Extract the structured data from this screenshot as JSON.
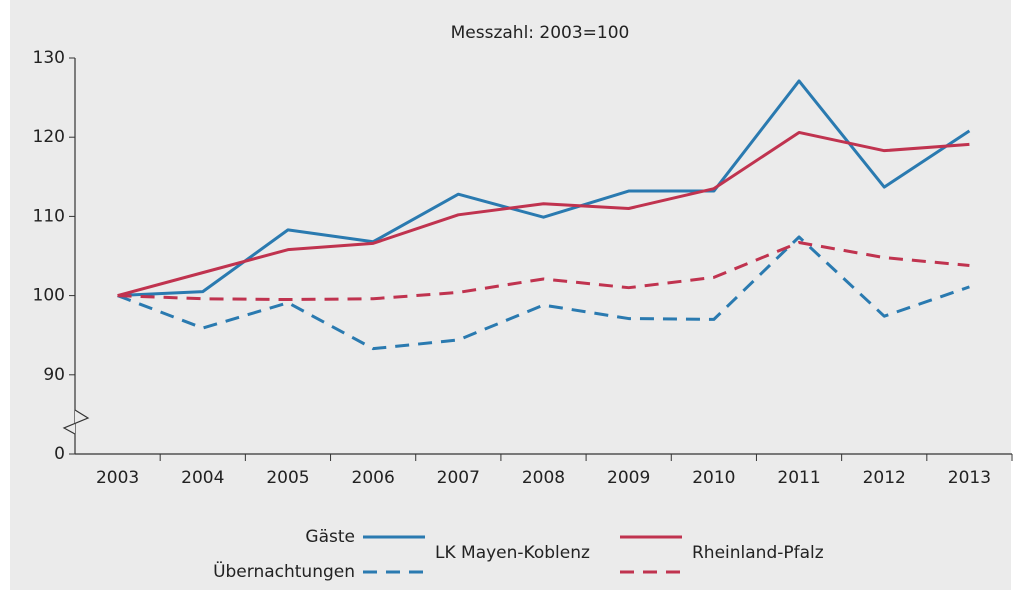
{
  "chart_data": {
    "type": "line",
    "title": "Messzahl: 2003=100",
    "categories": [
      "2003",
      "2004",
      "2005",
      "2006",
      "2007",
      "2008",
      "2009",
      "2010",
      "2011",
      "2012",
      "2013"
    ],
    "ylim": [
      0,
      130
    ],
    "yticks": [
      0,
      90,
      100,
      110,
      120,
      130
    ],
    "axis_break": true,
    "legend": {
      "rows": [
        "Gäste",
        "Übernachtungen"
      ],
      "columns": [
        "LK Mayen-Koblenz",
        "Rheinland-Pfalz"
      ]
    },
    "series": [
      {
        "color": "#2a7ab0",
        "dashed": false,
        "values": [
          100,
          100.5,
          108.3,
          106.8,
          112.8,
          109.9,
          113.2,
          113.2,
          127.1,
          113.7,
          120.8
        ]
      },
      {
        "color": "#2a7ab0",
        "dashed": true,
        "values": [
          100,
          95.9,
          99.1,
          93.3,
          94.4,
          98.8,
          97.1,
          97.0,
          107.4,
          97.4,
          101.1
        ]
      },
      {
        "color": "#c0334f",
        "dashed": false,
        "values": [
          100,
          102.9,
          105.8,
          106.6,
          110.2,
          111.6,
          111.0,
          113.5,
          120.6,
          118.3,
          119.1
        ]
      },
      {
        "color": "#c0334f",
        "dashed": true,
        "values": [
          100,
          99.6,
          99.5,
          99.6,
          100.4,
          102.1,
          101.0,
          102.3,
          106.7,
          104.8,
          103.8
        ]
      }
    ]
  }
}
